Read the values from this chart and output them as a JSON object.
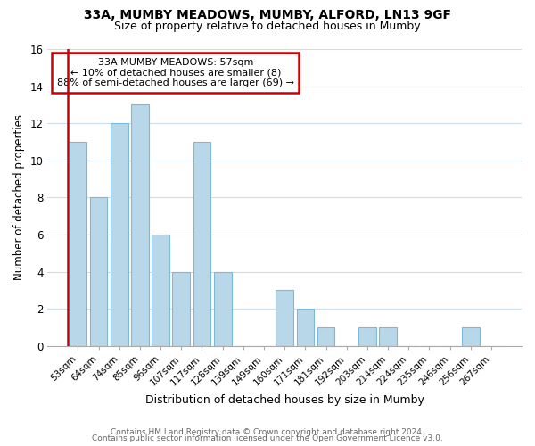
{
  "title1": "33A, MUMBY MEADOWS, MUMBY, ALFORD, LN13 9GF",
  "title2": "Size of property relative to detached houses in Mumby",
  "xlabel": "Distribution of detached houses by size in Mumby",
  "ylabel": "Number of detached properties",
  "categories": [
    "53sqm",
    "64sqm",
    "74sqm",
    "85sqm",
    "96sqm",
    "107sqm",
    "117sqm",
    "128sqm",
    "139sqm",
    "149sqm",
    "160sqm",
    "171sqm",
    "181sqm",
    "192sqm",
    "203sqm",
    "214sqm",
    "224sqm",
    "235sqm",
    "246sqm",
    "256sqm",
    "267sqm"
  ],
  "values": [
    11,
    8,
    12,
    13,
    6,
    4,
    11,
    4,
    0,
    0,
    3,
    2,
    1,
    0,
    1,
    1,
    0,
    0,
    0,
    1,
    0
  ],
  "bar_color": "#b8d8ea",
  "bar_edge_color": "#7db8d4",
  "annotation_box_edge_color": "#cc0000",
  "annotation_text": "33A MUMBY MEADOWS: 57sqm\n← 10% of detached houses are smaller (8)\n88% of semi-detached houses are larger (69) →",
  "ylim": [
    0,
    16
  ],
  "yticks": [
    0,
    2,
    4,
    6,
    8,
    10,
    12,
    14,
    16
  ],
  "footer1": "Contains HM Land Registry data © Crown copyright and database right 2024.",
  "footer2": "Contains public sector information licensed under the Open Government Licence v3.0.",
  "bg_color": "#ffffff",
  "grid_color": "#ccdde8"
}
